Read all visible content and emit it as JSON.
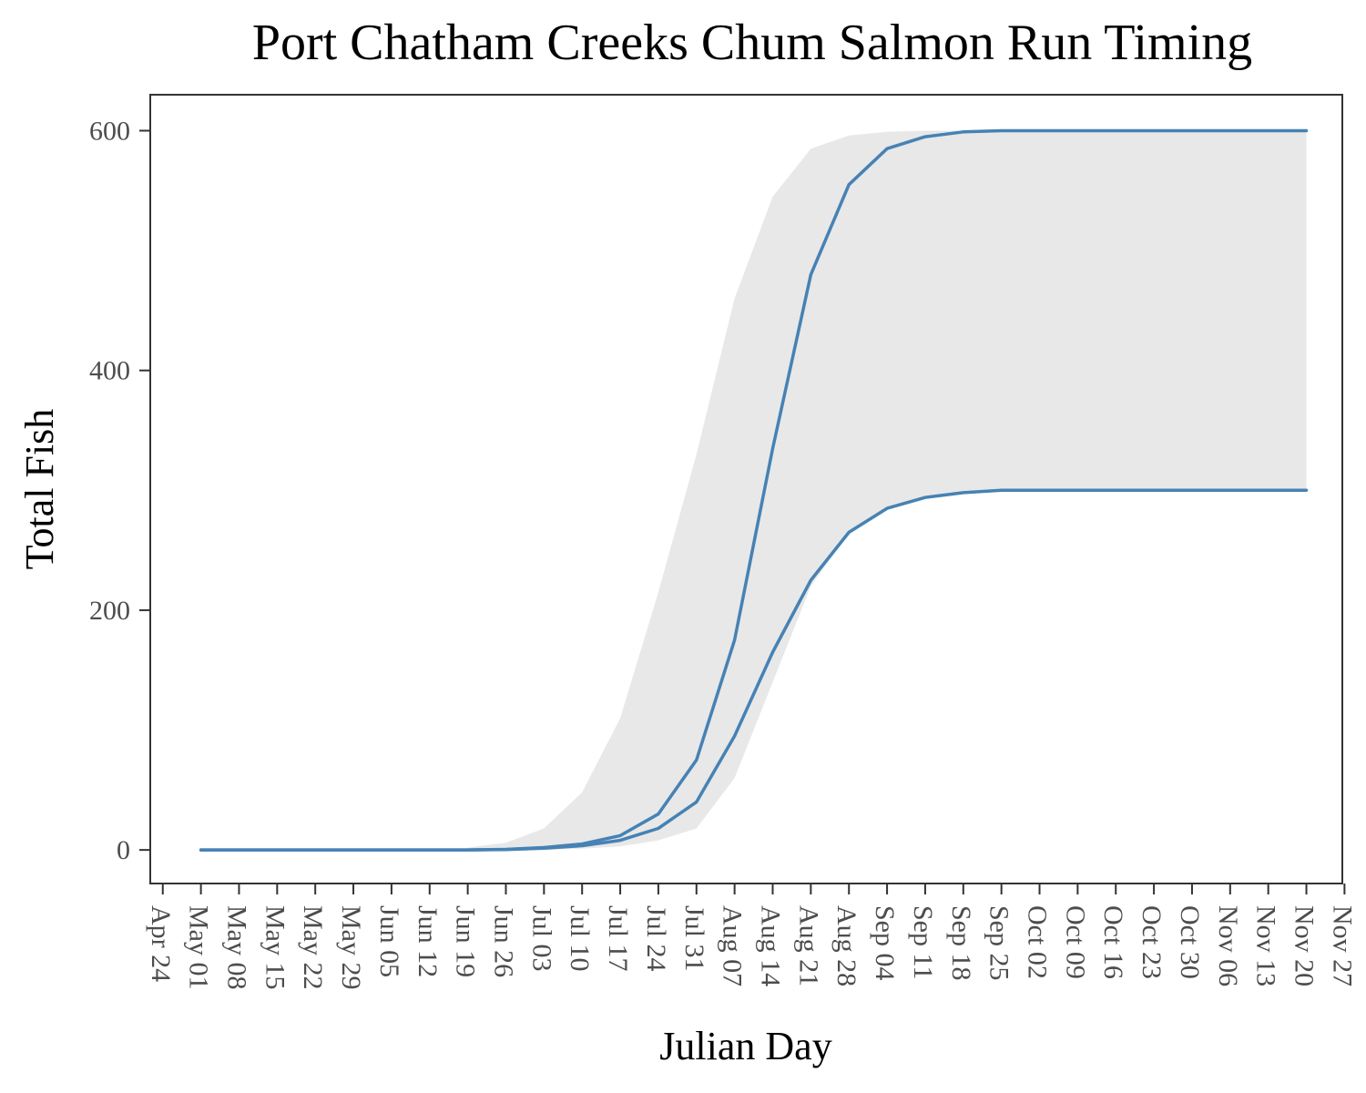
{
  "chart_data": {
    "type": "line",
    "title": "Port Chatham Creeks Chum Salmon Run Timing",
    "xlabel": "Julian Day",
    "ylabel": "Total Fish",
    "x_tick_labels": [
      "Apr 24",
      "May 01",
      "May 08",
      "May 15",
      "May 22",
      "May 29",
      "Jun 05",
      "Jun 12",
      "Jun 19",
      "Jun 26",
      "Jul 03",
      "Jul 10",
      "Jul 17",
      "Jul 24",
      "Jul 31",
      "Aug 07",
      "Aug 14",
      "Aug 21",
      "Aug 28",
      "Sep 04",
      "Sep 11",
      "Sep 18",
      "Sep 25",
      "Oct 02",
      "Oct 09",
      "Oct 16",
      "Oct 23",
      "Oct 30",
      "Nov 06",
      "Nov 13",
      "Nov 20",
      "Nov 27"
    ],
    "y_ticks": [
      0,
      200,
      400,
      600
    ],
    "x_range_days": [
      -2.3,
      216.6
    ],
    "ylim": [
      -28,
      630
    ],
    "grid": false,
    "colors": {
      "line": "#4682b4",
      "ribbon": "#e8e8e8",
      "frame": "#333333"
    },
    "series": [
      {
        "x_days": [
          7,
          56,
          63,
          70,
          77,
          84,
          91,
          98,
          105,
          112,
          119,
          126,
          133,
          140,
          147,
          154,
          161,
          168,
          175,
          182,
          189,
          196,
          203,
          210
        ],
        "values": [
          0,
          0,
          0.5,
          2,
          5,
          12,
          30,
          75,
          175,
          335,
          480,
          555,
          585,
          595,
          599,
          600,
          600,
          600,
          600,
          600,
          600,
          600,
          600,
          600
        ]
      },
      {
        "x_days": [
          7,
          56,
          63,
          70,
          77,
          84,
          91,
          98,
          105,
          112,
          119,
          126,
          133,
          140,
          147,
          154,
          161,
          168,
          175,
          182,
          189,
          196,
          203,
          210
        ],
        "values": [
          0,
          0,
          0.3,
          1.5,
          3.5,
          8,
          18,
          40,
          95,
          165,
          225,
          265,
          285,
          294,
          298,
          300,
          300,
          300,
          300,
          300,
          300,
          300,
          300,
          300
        ]
      }
    ],
    "ribbon": {
      "x_days": [
        56,
        63,
        70,
        77,
        84,
        91,
        98,
        105,
        112,
        119,
        126,
        133,
        140,
        147,
        154,
        161,
        168,
        175,
        182,
        189,
        196,
        203,
        210
      ],
      "upper": [
        2,
        6,
        18,
        48,
        110,
        215,
        330,
        460,
        545,
        585,
        596,
        599,
        600,
        600,
        600,
        600,
        600,
        600,
        600,
        600,
        600,
        600,
        600
      ],
      "lower": [
        0,
        0,
        0,
        1,
        3,
        8,
        18,
        60,
        140,
        220,
        265,
        285,
        293,
        297,
        299,
        300,
        300,
        300,
        300,
        300,
        300,
        300,
        300
      ]
    }
  }
}
